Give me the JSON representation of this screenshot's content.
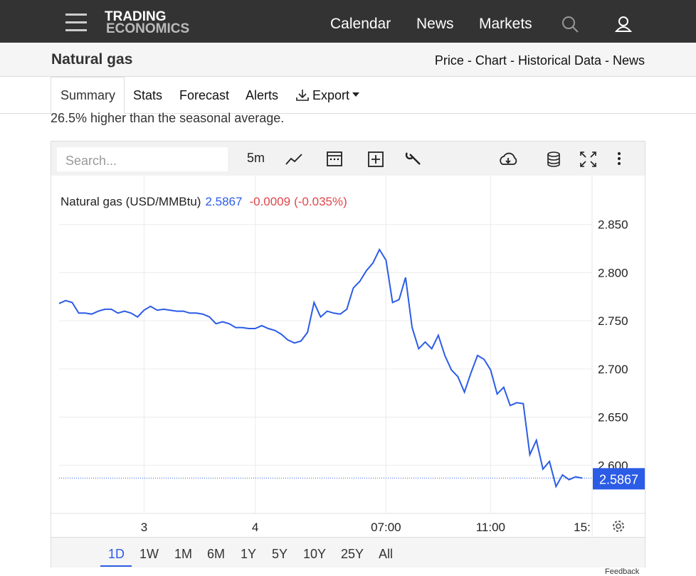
{
  "header": {
    "logo_top": "TRADING",
    "logo_bottom": "ECONOMICS",
    "nav": [
      "Calendar",
      "News",
      "Markets"
    ]
  },
  "subnav": {
    "title": "Natural gas",
    "links": [
      "Price",
      "Chart",
      "Historical Data",
      "News"
    ],
    "separator": "-"
  },
  "tabs": [
    "Summary",
    "Stats",
    "Forecast",
    "Alerts",
    "Export"
  ],
  "summary_text": "26.5% higher than the seasonal average.",
  "toolbar": {
    "search_placeholder": "Search...",
    "interval": "5m"
  },
  "ranges": [
    "1D",
    "1W",
    "1M",
    "6M",
    "1Y",
    "5Y",
    "10Y",
    "25Y",
    "All"
  ],
  "feedback": "Feedback",
  "chart_data": {
    "type": "line",
    "legend": {
      "name": "Natural gas (USD/MMBtu)",
      "last": 2.5867,
      "change": -0.0009,
      "change_pct": "(-0.035%)"
    },
    "series": [
      {
        "name": "Natural gas (USD/MMBtu)",
        "color": "#2b5ce6",
        "values": [
          2.768,
          2.771,
          2.769,
          2.758,
          2.758,
          2.757,
          2.76,
          2.762,
          2.762,
          2.758,
          2.76,
          2.758,
          2.754,
          2.761,
          2.765,
          2.761,
          2.762,
          2.761,
          2.76,
          2.76,
          2.758,
          2.758,
          2.757,
          2.754,
          2.747,
          2.749,
          2.747,
          2.743,
          2.743,
          2.742,
          2.742,
          2.745,
          2.742,
          2.74,
          2.736,
          2.73,
          2.727,
          2.729,
          2.738,
          2.769,
          2.754,
          2.76,
          2.758,
          2.757,
          2.762,
          2.784,
          2.791,
          2.802,
          2.81,
          2.824,
          2.813,
          2.769,
          2.772,
          2.795,
          2.743,
          2.721,
          2.728,
          2.721,
          2.735,
          2.714,
          2.699,
          2.692,
          2.676,
          2.696,
          2.714,
          2.71,
          2.699,
          2.674,
          2.681,
          2.662,
          2.665,
          2.664,
          2.611,
          2.626,
          2.596,
          2.604,
          2.578,
          2.59,
          2.585,
          2.588,
          2.5867
        ]
      }
    ],
    "xlim": [
      0,
      80
    ],
    "xticks": [
      {
        "value": 13,
        "label": "3"
      },
      {
        "value": 30,
        "label": "4"
      },
      {
        "value": 50,
        "label": "07:00"
      },
      {
        "value": 66,
        "label": "11:00"
      },
      {
        "value": 80,
        "label": "15:"
      }
    ],
    "ylim": [
      2.55,
      2.9
    ],
    "yticks": [
      {
        "value": 2.6,
        "label": "2.600"
      },
      {
        "value": 2.65,
        "label": "2.650"
      },
      {
        "value": 2.7,
        "label": "2.700"
      },
      {
        "value": 2.75,
        "label": "2.750"
      },
      {
        "value": 2.8,
        "label": "2.800"
      },
      {
        "value": 2.85,
        "label": "2.850"
      }
    ],
    "grid": true
  }
}
